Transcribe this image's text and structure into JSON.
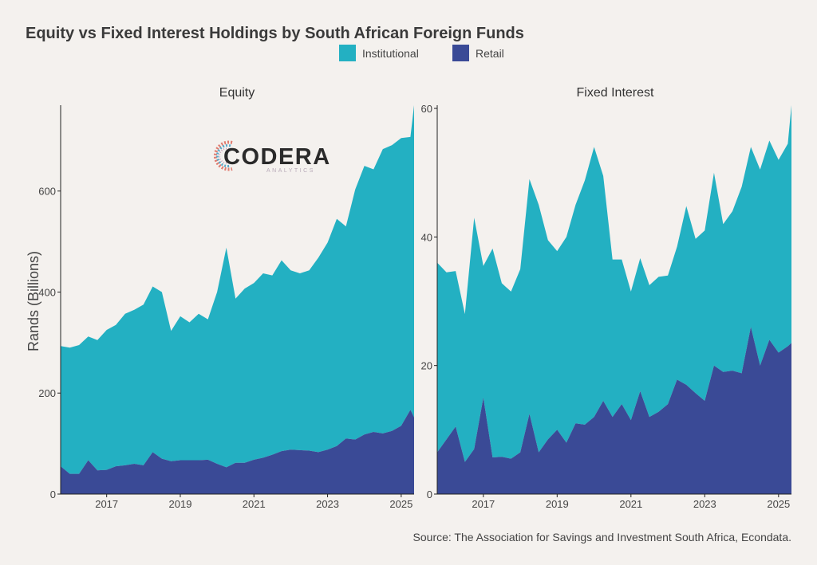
{
  "title": "Equity vs Fixed Interest Holdings by South African Foreign Funds",
  "source": "Source: The Association for Savings and Investment South Africa, Econdata.",
  "ylabel": "Rands (Billions)",
  "legend": [
    {
      "label": "Institutional",
      "color": "#23b0c2"
    },
    {
      "label": "Retail",
      "color": "#3a4a96"
    }
  ],
  "logo": {
    "main": "CODERA",
    "sub": "ANALYTICS"
  },
  "colors": {
    "background": "#f4f1ee",
    "institutional": "#23b0c2",
    "retail": "#3a4a96",
    "axis": "#222222"
  },
  "chart_data": [
    {
      "type": "area",
      "stacked": true,
      "title": "Equity",
      "x_ticks": [
        "2017",
        "2019",
        "2021",
        "2023",
        "2025"
      ],
      "y_ticks": [
        "0",
        "200",
        "400",
        "600"
      ],
      "ylim": [
        0,
        770
      ],
      "xlim": [
        2015.75,
        2025.35
      ],
      "x": [
        2015.75,
        2016.0,
        2016.25,
        2016.5,
        2016.75,
        2017.0,
        2017.25,
        2017.5,
        2017.75,
        2018.0,
        2018.25,
        2018.5,
        2018.75,
        2019.0,
        2019.25,
        2019.5,
        2019.75,
        2020.0,
        2020.25,
        2020.5,
        2020.75,
        2021.0,
        2021.25,
        2021.5,
        2021.75,
        2022.0,
        2022.25,
        2022.5,
        2022.75,
        2023.0,
        2023.25,
        2023.5,
        2023.75,
        2024.0,
        2024.25,
        2024.5,
        2024.75,
        2025.0,
        2025.25,
        2025.35
      ],
      "series": [
        {
          "name": "Retail",
          "values": [
            55,
            40,
            40,
            67,
            47,
            48,
            55,
            57,
            60,
            57,
            83,
            70,
            65,
            67,
            67,
            67,
            68,
            60,
            53,
            62,
            62,
            68,
            72,
            78,
            85,
            88,
            87,
            86,
            83,
            88,
            95,
            110,
            108,
            118,
            123,
            120,
            125,
            135,
            167,
            152
          ]
        },
        {
          "name": "Institutional",
          "values": [
            238,
            250,
            255,
            245,
            258,
            277,
            280,
            300,
            305,
            318,
            328,
            330,
            258,
            285,
            273,
            290,
            278,
            340,
            435,
            325,
            345,
            350,
            365,
            355,
            378,
            355,
            350,
            357,
            385,
            410,
            450,
            420,
            495,
            532,
            520,
            563,
            566,
            570,
            540,
            618
          ]
        }
      ]
    },
    {
      "type": "area",
      "stacked": true,
      "title": "Fixed Interest",
      "x_ticks": [
        "2017",
        "2019",
        "2021",
        "2023",
        "2025"
      ],
      "y_ticks": [
        "0",
        "20",
        "40",
        "60"
      ],
      "ylim": [
        0,
        60.5
      ],
      "xlim": [
        2015.75,
        2025.35
      ],
      "x": [
        2015.75,
        2016.0,
        2016.25,
        2016.5,
        2016.75,
        2017.0,
        2017.25,
        2017.5,
        2017.75,
        2018.0,
        2018.25,
        2018.5,
        2018.75,
        2019.0,
        2019.25,
        2019.5,
        2019.75,
        2020.0,
        2020.25,
        2020.5,
        2020.75,
        2021.0,
        2021.25,
        2021.5,
        2021.75,
        2022.0,
        2022.25,
        2022.5,
        2022.75,
        2023.0,
        2023.25,
        2023.5,
        2023.75,
        2024.0,
        2024.25,
        2024.5,
        2024.75,
        2025.0,
        2025.25,
        2025.35
      ],
      "series": [
        {
          "name": "Retail",
          "values": [
            6.5,
            8.5,
            10.5,
            5,
            7,
            15,
            5.7,
            5.8,
            5.5,
            6.5,
            12.5,
            6.5,
            8.5,
            10,
            8,
            11,
            10.8,
            12,
            14.5,
            12,
            14,
            11.5,
            16,
            12,
            12.8,
            14,
            17.8,
            17,
            15.7,
            14.5,
            20,
            19,
            19.2,
            18.8,
            26,
            20,
            24,
            22,
            23,
            23.5
          ]
        },
        {
          "name": "Institutional",
          "values": [
            29.5,
            26,
            24.2,
            23,
            36,
            20.5,
            32.5,
            27,
            26,
            28.5,
            36.5,
            38.5,
            31,
            27.8,
            32,
            34,
            38,
            42,
            35,
            24.5,
            22.5,
            20,
            20.7,
            20.5,
            21,
            20,
            20.7,
            27.8,
            24,
            26.5,
            30,
            23,
            24.8,
            29,
            28,
            30.5,
            31,
            30,
            31.5,
            37
          ]
        }
      ]
    }
  ]
}
